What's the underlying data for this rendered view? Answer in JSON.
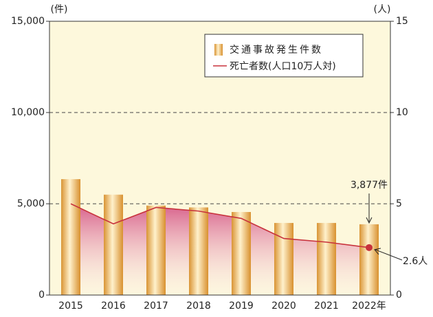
{
  "chart_data": {
    "type": "bar_line",
    "categories": [
      "2015",
      "2016",
      "2017",
      "2018",
      "2019",
      "2020",
      "2021",
      "2022年"
    ],
    "series": [
      {
        "name": "交通事故発生件数",
        "type": "bar",
        "color": "#e3a34a",
        "axis": "y",
        "values": [
          6350,
          5500,
          4900,
          4800,
          4550,
          3950,
          3950,
          3877
        ],
        "value_labels": [
          null,
          null,
          null,
          null,
          null,
          null,
          null,
          "3,877件"
        ]
      },
      {
        "name": "死亡者数(人口10万人対)",
        "type": "line",
        "color": "#c8323c",
        "axis": "y2",
        "values": [
          5.0,
          3.9,
          4.8,
          4.6,
          4.2,
          3.1,
          2.9,
          2.6
        ],
        "value_labels": [
          null,
          null,
          null,
          null,
          null,
          null,
          null,
          "2.6人"
        ]
      }
    ],
    "ylabel": "(件)",
    "y2label": "(人)",
    "ylim": [
      0,
      15000
    ],
    "yticks": [
      0,
      {
        "value": 5000,
        "label": "5,000"
      },
      {
        "value": 10000,
        "label": "10,000"
      },
      {
        "value": 15000,
        "label": "15,000"
      }
    ],
    "y2lim": [
      0,
      15
    ],
    "y2ticks": [
      0,
      5,
      10,
      15
    ],
    "grid": true,
    "legend": "upper right"
  }
}
